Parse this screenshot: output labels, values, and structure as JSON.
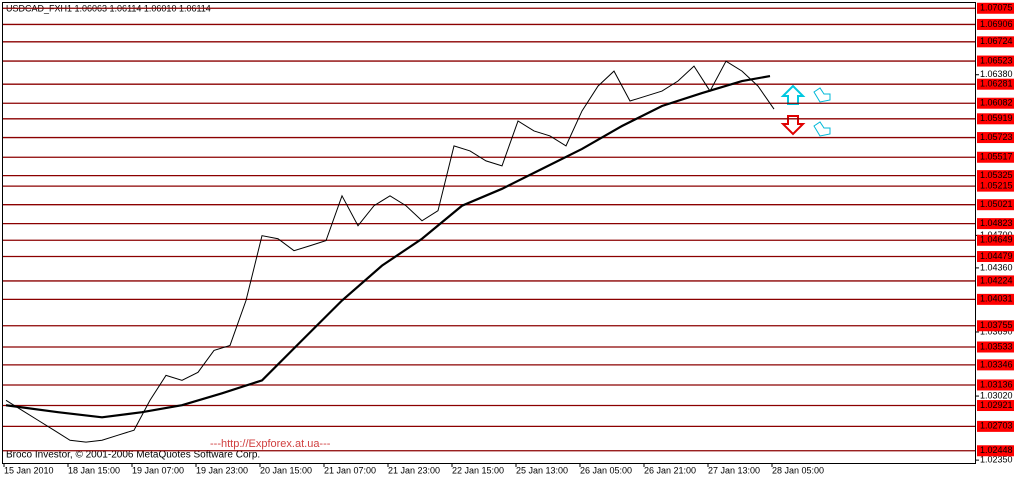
{
  "chart_data": {
    "type": "line",
    "title": "USDCAD_FXH1  1.06063 1.06114 1.06010 1.06114",
    "annotations": [
      "---http://Expforex.at.ua---",
      "Broco Investor, © 2001-2006 MetaQuotes Software Corp."
    ],
    "xlim": [
      0,
      242
    ],
    "xticks": [
      {
        "value": 5,
        "label": "15 Jan 2010"
      },
      {
        "value": 21,
        "label": "18 Jan 15:00"
      },
      {
        "value": 37,
        "label": "19 Jan 07:00"
      },
      {
        "value": 53,
        "label": "19 Jan 23:00"
      },
      {
        "value": 69,
        "label": "20 Jan 15:00"
      },
      {
        "value": 85,
        "label": "21 Jan 07:00"
      },
      {
        "value": 101,
        "label": "21 Jan 23:00"
      },
      {
        "value": 117,
        "label": "22 Jan 15:00"
      },
      {
        "value": 133,
        "label": "25 Jan 13:00"
      },
      {
        "value": 149,
        "label": "26 Jan 05:00"
      },
      {
        "value": 165,
        "label": "26 Jan 21:00"
      },
      {
        "value": 181,
        "label": "27 Jan 13:00"
      },
      {
        "value": 197,
        "label": "28 Jan 05:00"
      }
    ],
    "ylim": [
      1.0232,
      1.0713
    ],
    "yticks": [
      {
        "value": 1.0638,
        "label": "1.06380"
      },
      {
        "value": 1.047,
        "label": "1.04700"
      },
      {
        "value": 1.0436,
        "label": "1.04360"
      },
      {
        "value": 1.0369,
        "label": "1.03690"
      },
      {
        "value": 1.0302,
        "label": "1.03020"
      },
      {
        "value": 1.0235,
        "label": "1.02350"
      }
    ],
    "grid": false,
    "levels": [
      1.07075,
      1.06906,
      1.06724,
      1.06523,
      1.06281,
      1.06082,
      1.05919,
      1.05723,
      1.05517,
      1.05325,
      1.05215,
      1.05021,
      1.04823,
      1.04649,
      1.04479,
      1.04224,
      1.04031,
      1.03755,
      1.03533,
      1.03346,
      1.03136,
      1.02921,
      1.02703,
      1.02448
    ],
    "level_color": "#8b0000",
    "level_label_color": "#ff0000",
    "series": [
      {
        "color": "#000000",
        "width": 1,
        "x": [
          0,
          4,
          8,
          12,
          16,
          20,
          24,
          28,
          32,
          36,
          40,
          44,
          48,
          52,
          56,
          60,
          64,
          68,
          72,
          76,
          80,
          84,
          88,
          92,
          96,
          100,
          104,
          108,
          112,
          116,
          120,
          124,
          128,
          132,
          136,
          140,
          144,
          148,
          152,
          156,
          160,
          164,
          168,
          172,
          176,
          180,
          184,
          188,
          192
        ],
        "values": [
          1.02976,
          1.02871,
          1.02767,
          1.02663,
          1.02558,
          1.02538,
          1.02558,
          1.02611,
          1.02663,
          1.02976,
          1.03236,
          1.03184,
          1.03268,
          1.03497,
          1.03549,
          1.04019,
          1.04697,
          1.04665,
          1.0454,
          1.04592,
          1.04645,
          1.05114,
          1.04801,
          1.0501,
          1.05114,
          1.0501,
          1.04853,
          1.04958,
          1.05636,
          1.05583,
          1.05479,
          1.05427,
          1.05896,
          1.05792,
          1.0574,
          1.05636,
          1.06001,
          1.06261,
          1.06418,
          1.06105,
          1.06157,
          1.06209,
          1.06314,
          1.0647,
          1.06209,
          1.06522,
          1.06418,
          1.06261,
          1.06021
        ]
      },
      {
        "color": "#000000",
        "width": 2.2,
        "x": [
          0,
          13,
          24,
          34,
          44,
          54,
          64,
          74,
          84,
          94,
          104,
          114,
          124,
          134,
          144,
          154,
          164,
          174,
          184,
          191
        ],
        "values": [
          1.02924,
          1.02851,
          1.02798,
          1.02851,
          1.02924,
          1.03049,
          1.03184,
          1.03602,
          1.04019,
          1.04384,
          1.04665,
          1.0501,
          1.05187,
          1.05396,
          1.05604,
          1.05844,
          1.06053,
          1.06188,
          1.06314,
          1.06366
        ]
      }
    ]
  }
}
